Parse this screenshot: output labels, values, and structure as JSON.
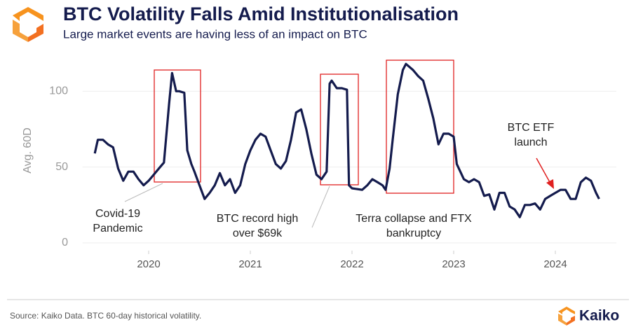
{
  "chart_data": {
    "type": "line",
    "title": "BTC Volatility Falls Amid Institutionalisation",
    "subtitle": "Large market events are having less of an impact on BTC",
    "y_label": "Avg. 60D",
    "source": "Source: Kaiko Data. BTC 60-day historical volatility.",
    "brand": "Kaiko",
    "color": "#141b4d",
    "grid": true,
    "xlim": [
      2019.35,
      2024.6
    ],
    "xticks": [
      2020,
      2021,
      2022,
      2023,
      2024
    ],
    "ylim": [
      0,
      120
    ],
    "yticks": [
      0,
      50,
      100
    ],
    "annotations": [
      {
        "lines": [
          "Covid-19",
          "Pandemic"
        ]
      },
      {
        "lines": [
          "BTC record high",
          "over $69k"
        ]
      },
      {
        "lines": [
          "Terra collapse and FTX",
          "bankruptcy"
        ]
      },
      {
        "lines": [
          "BTC ETF",
          "launch"
        ]
      }
    ],
    "x": [
      2019.47,
      2019.5,
      2019.55,
      2019.6,
      2019.65,
      2019.7,
      2019.75,
      2019.8,
      2019.85,
      2019.9,
      2019.95,
      2020.0,
      2020.05,
      2020.1,
      2020.15,
      2020.2,
      2020.23,
      2020.27,
      2020.3,
      2020.35,
      2020.38,
      2020.42,
      2020.45,
      2020.5,
      2020.55,
      2020.6,
      2020.65,
      2020.7,
      2020.75,
      2020.8,
      2020.85,
      2020.9,
      2020.95,
      2021.0,
      2021.05,
      2021.1,
      2021.15,
      2021.2,
      2021.25,
      2021.3,
      2021.35,
      2021.4,
      2021.45,
      2021.5,
      2021.55,
      2021.6,
      2021.65,
      2021.7,
      2021.75,
      2021.78,
      2021.8,
      2021.85,
      2021.9,
      2021.95,
      2021.97,
      2022.0,
      2022.1,
      2022.15,
      2022.2,
      2022.25,
      2022.3,
      2022.33,
      2022.37,
      2022.4,
      2022.45,
      2022.5,
      2022.53,
      2022.6,
      2022.65,
      2022.7,
      2022.75,
      2022.8,
      2022.85,
      2022.9,
      2022.95,
      2023.0,
      2023.03,
      2023.1,
      2023.15,
      2023.2,
      2023.25,
      2023.3,
      2023.35,
      2023.4,
      2023.45,
      2023.5,
      2023.55,
      2023.6,
      2023.65,
      2023.7,
      2023.75,
      2023.8,
      2023.85,
      2023.9,
      2023.95,
      2024.0,
      2024.05,
      2024.1,
      2024.15,
      2024.2,
      2024.25,
      2024.3,
      2024.35,
      2024.4,
      2024.43
    ],
    "values": [
      59,
      68,
      68,
      65,
      63,
      49,
      41,
      47,
      47,
      42,
      38,
      41,
      45,
      49,
      53,
      91,
      112,
      100,
      100,
      99,
      61,
      52,
      47,
      38,
      29,
      33,
      38,
      46,
      38,
      42,
      33,
      38,
      52,
      61,
      68,
      72,
      70,
      61,
      52,
      49,
      54,
      68,
      86,
      88,
      75,
      59,
      45,
      42,
      47,
      105,
      107,
      102,
      102,
      101,
      38,
      36,
      35,
      38,
      42,
      40,
      38,
      35,
      49,
      68,
      98,
      114,
      118,
      114,
      110,
      107,
      95,
      82,
      65,
      72,
      72,
      70,
      52,
      42,
      40,
      42,
      40,
      31,
      32,
      22,
      33,
      33,
      24,
      22,
      17,
      25,
      25,
      26,
      22,
      29,
      31,
      33,
      35,
      35,
      29,
      29,
      40,
      43,
      41,
      33,
      29
    ]
  }
}
